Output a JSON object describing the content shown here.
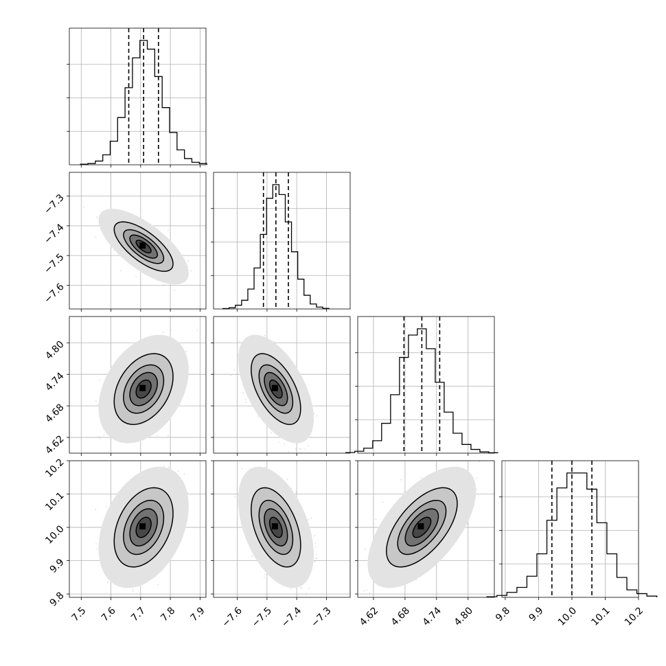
{
  "chart_data": {
    "type": "scatter",
    "variant": "corner-plot",
    "title": "",
    "grid": true,
    "parameters": [
      {
        "median": 7.71,
        "sd": 0.05,
        "q16": 7.66,
        "q84": 7.76,
        "lim": [
          7.46,
          7.92
        ],
        "ticks": [
          "7.5",
          "7.6",
          "7.7",
          "7.8",
          "7.9"
        ],
        "tick_values": [
          7.5,
          7.6,
          7.7,
          7.8,
          7.9
        ]
      },
      {
        "median": -7.47,
        "sd": 0.042,
        "q16": -7.512,
        "q84": -7.428,
        "lim": [
          -7.68,
          -7.22
        ],
        "ticks": [
          "−7.6",
          "−7.5",
          "−7.4",
          "−7.3"
        ],
        "tick_values": [
          -7.6,
          -7.5,
          -7.4,
          -7.3
        ]
      },
      {
        "median": 4.712,
        "sd": 0.034,
        "q16": 4.678,
        "q84": 4.746,
        "lim": [
          4.59,
          4.85
        ],
        "ticks": [
          "4.62",
          "4.68",
          "4.74",
          "4.80"
        ],
        "tick_values": [
          4.62,
          4.68,
          4.74,
          4.8
        ]
      },
      {
        "median": 10.0,
        "sd": 0.06,
        "q16": 9.94,
        "q84": 10.06,
        "lim": [
          9.79,
          10.2
        ],
        "ticks": [
          "9.8",
          "9.9",
          "10.0",
          "10.1",
          "10.2"
        ],
        "tick_values": [
          9.8,
          9.9,
          10.0,
          10.1,
          10.2
        ]
      }
    ],
    "correlations": [
      [
        1.0,
        -0.7,
        0.35,
        0.35
      ],
      [
        -0.7,
        1.0,
        -0.55,
        -0.45
      ],
      [
        0.35,
        -0.55,
        1.0,
        0.6
      ],
      [
        0.35,
        -0.45,
        0.6,
        1.0
      ]
    ],
    "histogram_counts": [
      [
        0.5,
        1,
        3,
        8,
        19,
        38,
        62,
        86,
        100,
        93,
        71,
        46,
        26,
        12,
        5,
        2,
        1
      ],
      [
        0.3,
        1,
        3,
        7,
        16,
        33,
        60,
        89,
        100,
        92,
        70,
        46,
        24,
        11,
        4,
        1.5,
        0.5
      ],
      [
        0.5,
        1.5,
        4,
        10,
        24,
        47,
        77,
        95,
        100,
        84,
        57,
        33,
        16,
        7,
        3,
        1,
        0.3
      ],
      [
        0.5,
        1.5,
        4,
        8,
        17,
        35,
        62,
        88,
        100,
        100,
        87,
        60,
        35,
        16,
        6,
        3,
        1
      ]
    ]
  }
}
